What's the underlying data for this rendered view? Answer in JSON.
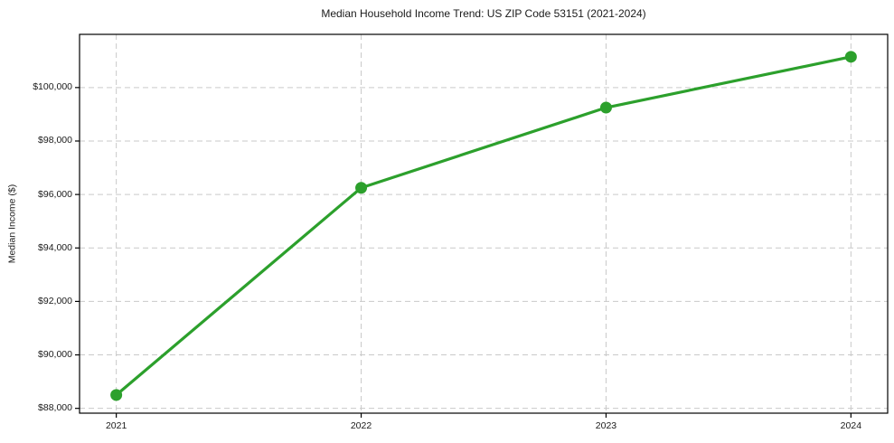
{
  "chart_data": {
    "type": "line",
    "title": "Median Household Income Trend: US ZIP Code 53151 (2021-2024)",
    "xlabel": "",
    "ylabel": "Median Income ($)",
    "x": [
      2021,
      2022,
      2023,
      2024
    ],
    "x_tick_labels": [
      "2021",
      "2022",
      "2023",
      "2024"
    ],
    "y_ticks": [
      88000,
      90000,
      92000,
      94000,
      96000,
      98000,
      100000
    ],
    "y_tick_labels": [
      "$88,000",
      "$90,000",
      "$92,000",
      "$94,000",
      "$96,000",
      "$98,000",
      "$100,000"
    ],
    "series": [
      {
        "name": "Median household income",
        "values": [
          88500,
          96250,
          99250,
          101150
        ],
        "color": "#2ca02c",
        "marker": "circle"
      }
    ],
    "xlim": [
      2020.85,
      2024.15
    ],
    "ylim": [
      87820,
      101990
    ],
    "grid": true,
    "grid_style": "dashed",
    "grid_color": "#c9c9c9",
    "axis_color": "#000000",
    "background_color": "#ffffff",
    "legend_position": "none"
  }
}
